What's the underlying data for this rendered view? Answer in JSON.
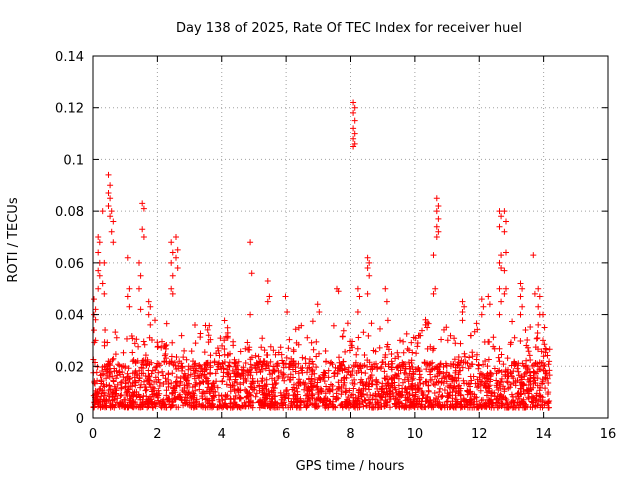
{
  "chart_data": {
    "type": "scatter",
    "title": "Day 138 of 2025, Rate Of TEC Index for receiver huel",
    "xlabel": "GPS time / hours",
    "ylabel": "ROTI / TECUs",
    "xlim": [
      0,
      16
    ],
    "ylim": [
      0,
      0.14
    ],
    "xticks": [
      "0",
      "2",
      "4",
      "6",
      "8",
      "10",
      "12",
      "14",
      "16"
    ],
    "yticks": [
      "0",
      "0.02",
      "0.04",
      "0.06",
      "0.08",
      "0.1",
      "0.12",
      "0.14"
    ],
    "grid": true,
    "marker": "+",
    "series_color": "#ff0000",
    "time_range": [
      0.0,
      14.2
    ],
    "dense_band": [
      0.004,
      0.022
    ],
    "spikes": [
      {
        "x": 0.05,
        "values": [
          0.046,
          0.042,
          0.04,
          0.038,
          0.034,
          0.03
        ]
      },
      {
        "x": 0.18,
        "values": [
          0.07,
          0.068,
          0.064,
          0.06,
          0.057,
          0.055,
          0.05
        ]
      },
      {
        "x": 0.32,
        "values": [
          0.08,
          0.06,
          0.052,
          0.048
        ]
      },
      {
        "x": 0.5,
        "values": [
          0.094,
          0.09,
          0.087,
          0.085,
          0.082,
          0.078
        ]
      },
      {
        "x": 0.6,
        "values": [
          0.08,
          0.076,
          0.072,
          0.068
        ]
      },
      {
        "x": 1.1,
        "values": [
          0.062,
          0.05,
          0.047,
          0.043
        ]
      },
      {
        "x": 1.45,
        "values": [
          0.06,
          0.055,
          0.05,
          0.042
        ]
      },
      {
        "x": 1.55,
        "values": [
          0.083,
          0.081,
          0.073,
          0.07
        ]
      },
      {
        "x": 1.75,
        "values": [
          0.045,
          0.043,
          0.04,
          0.036
        ]
      },
      {
        "x": 2.45,
        "values": [
          0.068,
          0.064,
          0.06,
          0.055,
          0.05,
          0.048
        ]
      },
      {
        "x": 2.6,
        "values": [
          0.07,
          0.065,
          0.062,
          0.058
        ]
      },
      {
        "x": 4.9,
        "values": [
          0.068,
          0.056,
          0.04
        ]
      },
      {
        "x": 5.45,
        "values": [
          0.053,
          0.047,
          0.045
        ]
      },
      {
        "x": 6.0,
        "values": [
          0.047,
          0.041
        ]
      },
      {
        "x": 7.0,
        "values": [
          0.044,
          0.041
        ]
      },
      {
        "x": 7.6,
        "values": [
          0.05,
          0.049
        ]
      },
      {
        "x": 8.1,
        "values": [
          0.122,
          0.12,
          0.118,
          0.115,
          0.112,
          0.11,
          0.108,
          0.106,
          0.105
        ]
      },
      {
        "x": 8.25,
        "values": [
          0.05,
          0.047,
          0.041
        ]
      },
      {
        "x": 8.55,
        "values": [
          0.062,
          0.06,
          0.058,
          0.055,
          0.048
        ]
      },
      {
        "x": 9.1,
        "values": [
          0.05,
          0.045
        ]
      },
      {
        "x": 10.35,
        "values": [
          0.038,
          0.037,
          0.036,
          0.035
        ]
      },
      {
        "x": 10.6,
        "values": [
          0.063,
          0.05,
          0.048
        ]
      },
      {
        "x": 10.7,
        "values": [
          0.085,
          0.082,
          0.08,
          0.077,
          0.074,
          0.072,
          0.07
        ]
      },
      {
        "x": 11.5,
        "values": [
          0.045,
          0.043,
          0.041
        ]
      },
      {
        "x": 12.1,
        "values": [
          0.046,
          0.043,
          0.04
        ]
      },
      {
        "x": 12.3,
        "values": [
          0.047,
          0.044
        ]
      },
      {
        "x": 12.65,
        "values": [
          0.08,
          0.078,
          0.074,
          0.063,
          0.06,
          0.058,
          0.05,
          0.045,
          0.04
        ]
      },
      {
        "x": 12.8,
        "values": [
          0.08,
          0.076,
          0.072,
          0.064,
          0.057,
          0.05,
          0.048
        ]
      },
      {
        "x": 13.3,
        "values": [
          0.052,
          0.05,
          0.047,
          0.043,
          0.04
        ]
      },
      {
        "x": 13.7,
        "values": [
          0.063,
          0.048
        ]
      },
      {
        "x": 13.85,
        "values": [
          0.05,
          0.047,
          0.043,
          0.04,
          0.036
        ]
      },
      {
        "x": 14.0,
        "values": [
          0.04,
          0.035,
          0.03
        ]
      }
    ]
  }
}
